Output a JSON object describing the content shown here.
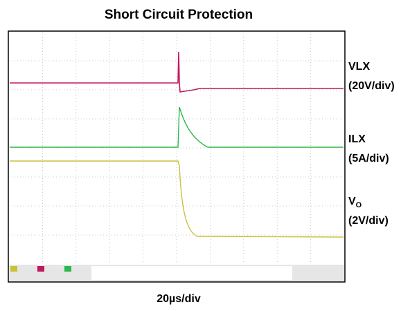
{
  "header": {
    "title": "Short Circuit Protection"
  },
  "traces": [
    {
      "label": "VLX",
      "scale": "(20V/div)"
    },
    {
      "label": "ILX",
      "scale": "(5A/div)"
    },
    {
      "label": "V",
      "label_sub": "O",
      "scale": "(2V/div)"
    }
  ],
  "footer": {
    "timebase": "20µs/div"
  }
}
